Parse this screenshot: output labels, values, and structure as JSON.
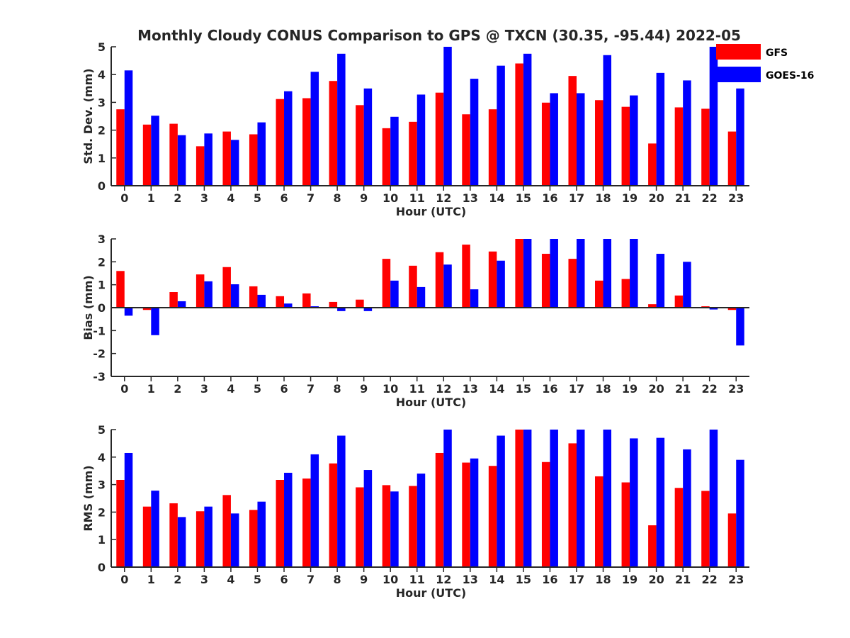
{
  "title": "Monthly Cloudy CONUS Comparison to GPS @ TXCN (30.35, -95.44) 2022-05",
  "colors": {
    "GFS": "#ff0000",
    "GOES-16": "#0000ff",
    "axis": "#262626"
  },
  "legend": {
    "placement": "top-right",
    "items": [
      "GFS",
      "GOES-16"
    ]
  },
  "chart_data": [
    {
      "type": "bar",
      "categories": [
        "0",
        "1",
        "2",
        "3",
        "4",
        "5",
        "6",
        "7",
        "8",
        "9",
        "10",
        "11",
        "12",
        "13",
        "14",
        "15",
        "16",
        "17",
        "18",
        "19",
        "20",
        "21",
        "22",
        "23"
      ],
      "xlabel": "Hour (UTC)",
      "ylabel": "Std. Dev. (mm)",
      "ylim": [
        0,
        5
      ],
      "yticks": [
        "0",
        "1",
        "2",
        "3",
        "4",
        "5"
      ],
      "grid": false,
      "series": [
        {
          "name": "GFS",
          "values": [
            2.75,
            2.2,
            2.23,
            1.42,
            1.95,
            1.85,
            3.12,
            3.15,
            3.77,
            2.9,
            2.07,
            2.3,
            3.35,
            2.57,
            2.75,
            4.4,
            2.99,
            3.95,
            3.08,
            2.84,
            1.52,
            2.82,
            2.77,
            1.95
          ]
        },
        {
          "name": "GOES-16",
          "values": [
            4.15,
            2.52,
            1.82,
            1.88,
            1.65,
            2.28,
            3.4,
            4.1,
            4.75,
            3.5,
            2.48,
            3.28,
            5.0,
            3.85,
            4.32,
            4.75,
            3.33,
            3.33,
            4.7,
            3.25,
            4.06,
            3.79,
            5.0,
            3.5
          ]
        }
      ]
    },
    {
      "type": "bar",
      "categories": [
        "0",
        "1",
        "2",
        "3",
        "4",
        "5",
        "6",
        "7",
        "8",
        "9",
        "10",
        "11",
        "12",
        "13",
        "14",
        "15",
        "16",
        "17",
        "18",
        "19",
        "20",
        "21",
        "22",
        "23"
      ],
      "xlabel": "Hour (UTC)",
      "ylabel": "Bias (mm)",
      "ylim": [
        -3,
        3
      ],
      "yticks": [
        "-3",
        "-2",
        "-1",
        "0",
        "1",
        "2",
        "3"
      ],
      "grid": false,
      "series": [
        {
          "name": "GFS",
          "values": [
            1.6,
            -0.1,
            0.68,
            1.45,
            1.77,
            0.93,
            0.5,
            0.62,
            0.25,
            0.35,
            2.13,
            1.83,
            2.42,
            2.75,
            2.45,
            3.0,
            2.35,
            2.13,
            1.18,
            1.25,
            0.15,
            0.53,
            0.06,
            -0.1
          ]
        },
        {
          "name": "GOES-16",
          "values": [
            -0.35,
            -1.2,
            0.28,
            1.15,
            1.02,
            0.56,
            0.18,
            0.06,
            -0.15,
            -0.15,
            1.18,
            0.9,
            1.88,
            0.8,
            2.05,
            3.0,
            3.0,
            3.0,
            3.0,
            3.0,
            2.35,
            2.0,
            -0.08,
            -1.65
          ]
        }
      ]
    },
    {
      "type": "bar",
      "categories": [
        "0",
        "1",
        "2",
        "3",
        "4",
        "5",
        "6",
        "7",
        "8",
        "9",
        "10",
        "11",
        "12",
        "13",
        "14",
        "15",
        "16",
        "17",
        "18",
        "19",
        "20",
        "21",
        "22",
        "23"
      ],
      "xlabel": "Hour (UTC)",
      "ylabel": "RMS (mm)",
      "ylim": [
        0,
        5
      ],
      "yticks": [
        "0",
        "1",
        "2",
        "3",
        "4",
        "5"
      ],
      "grid": false,
      "series": [
        {
          "name": "GFS",
          "values": [
            3.17,
            2.2,
            2.32,
            2.03,
            2.62,
            2.08,
            3.17,
            3.22,
            3.77,
            2.9,
            2.98,
            2.95,
            4.15,
            3.8,
            3.68,
            5.0,
            3.82,
            4.5,
            3.3,
            3.08,
            1.52,
            2.88,
            2.77,
            1.95
          ]
        },
        {
          "name": "GOES-16",
          "values": [
            4.15,
            2.78,
            1.82,
            2.2,
            1.95,
            2.38,
            3.43,
            4.1,
            4.78,
            3.53,
            2.75,
            3.4,
            5.0,
            3.95,
            4.78,
            5.0,
            5.0,
            5.0,
            5.0,
            4.68,
            4.7,
            4.28,
            5.0,
            3.9
          ]
        }
      ]
    }
  ]
}
